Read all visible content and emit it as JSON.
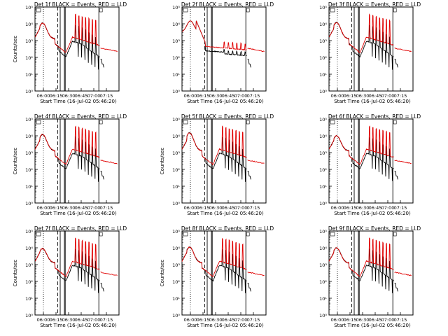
{
  "chart_data": {
    "type": "line",
    "y_scale": "log",
    "ylim": [
      1,
      100000
    ],
    "y_ticks": [
      1,
      10,
      100,
      1000,
      10000,
      100000
    ],
    "y_tick_labels": [
      "10⁰",
      "10¹",
      "10²",
      "10³",
      "10⁴",
      "10⁵"
    ],
    "xlim_minutes": [
      -10,
      90
    ],
    "x_tick_labels": [
      "06:00",
      "06:15",
      "06:30",
      "06:45",
      "07:00",
      "07:15"
    ],
    "x_tick_minutes": [
      0,
      15,
      30,
      45,
      60,
      75
    ],
    "ylabel": "Counts/sec",
    "xlabel": "Start Time (16-Jul-02 05:46:20)",
    "series_colors": {
      "events": "#000000",
      "lld": "#e00000"
    },
    "markers": {
      "dotted_minutes": [
        0
      ],
      "dashed_minutes": [
        17
      ],
      "solid_minutes": [
        20,
        25,
        26,
        66
      ]
    },
    "panels": [
      {
        "title": "Det 1f BLACK = Events, RED = LLD",
        "style": "typical",
        "peak": 11000,
        "show_ylabel": true
      },
      {
        "title": "Det 2f BLACK = Events, RED = LLD",
        "style": "flat",
        "peak": 15000,
        "show_ylabel": false
      },
      {
        "title": "Det 3f BLACK = Events, RED = LLD",
        "style": "typical",
        "peak": 12000,
        "show_ylabel": false
      },
      {
        "title": "Det 4f BLACK = Events, RED = LLD",
        "style": "typical",
        "peak": 12000,
        "show_ylabel": true
      },
      {
        "title": "Det 5f BLACK = Events, RED = LLD",
        "style": "typical",
        "peak": 15000,
        "show_ylabel": true
      },
      {
        "title": "Det 6f BLACK = Events, RED = LLD",
        "style": "typical",
        "peak": 10000,
        "show_ylabel": false
      },
      {
        "title": "Det 7f BLACK = Events, RED = LLD",
        "style": "typical",
        "peak": 9000,
        "show_ylabel": true
      },
      {
        "title": "Det 8f BLACK = Events, RED = LLD",
        "style": "typical",
        "peak": 11000,
        "show_ylabel": true
      },
      {
        "title": "Det 9f BLACK = Events, RED = LLD",
        "style": "typical",
        "peak": 10000,
        "show_ylabel": false
      }
    ]
  }
}
